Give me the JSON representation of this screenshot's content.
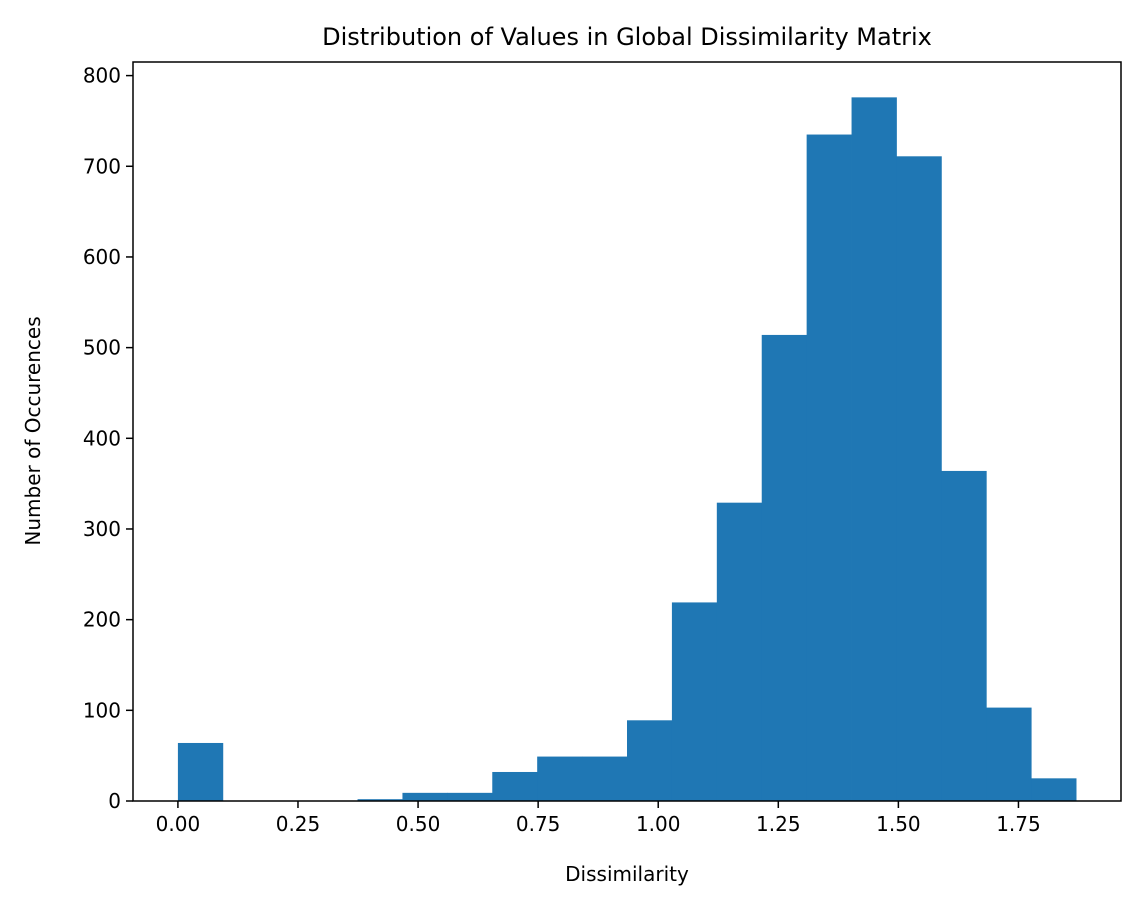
{
  "chart_data": {
    "type": "bar",
    "title": "Distribution of Values in Global Dissimilarity Matrix",
    "xlabel": "Dissimilarity",
    "ylabel": "Number of Occurences",
    "bar_color": "#1f77b4",
    "bin_edges": [
      0.0,
      0.0935,
      0.187,
      0.2805,
      0.374,
      0.4675,
      0.561,
      0.6545,
      0.748,
      0.8415,
      0.935,
      1.0285,
      1.122,
      1.2155,
      1.309,
      1.4025,
      1.496,
      1.5895,
      1.683,
      1.7765,
      1.87
    ],
    "counts": [
      64,
      0,
      0,
      0,
      2,
      9,
      9,
      32,
      49,
      49,
      89,
      219,
      329,
      514,
      735,
      776,
      711,
      364,
      103,
      25
    ],
    "xlim": [
      -0.0935,
      1.9635
    ],
    "ylim": [
      0,
      815
    ],
    "xticks": [
      0.0,
      0.25,
      0.5,
      0.75,
      1.0,
      1.25,
      1.5,
      1.75
    ],
    "xtick_labels": [
      "0.00",
      "0.25",
      "0.50",
      "0.75",
      "1.00",
      "1.25",
      "1.50",
      "1.75"
    ],
    "yticks": [
      0,
      100,
      200,
      300,
      400,
      500,
      600,
      700,
      800
    ],
    "ytick_labels": [
      "0",
      "100",
      "200",
      "300",
      "400",
      "500",
      "600",
      "700",
      "800"
    ],
    "grid": false,
    "legend": "none"
  }
}
